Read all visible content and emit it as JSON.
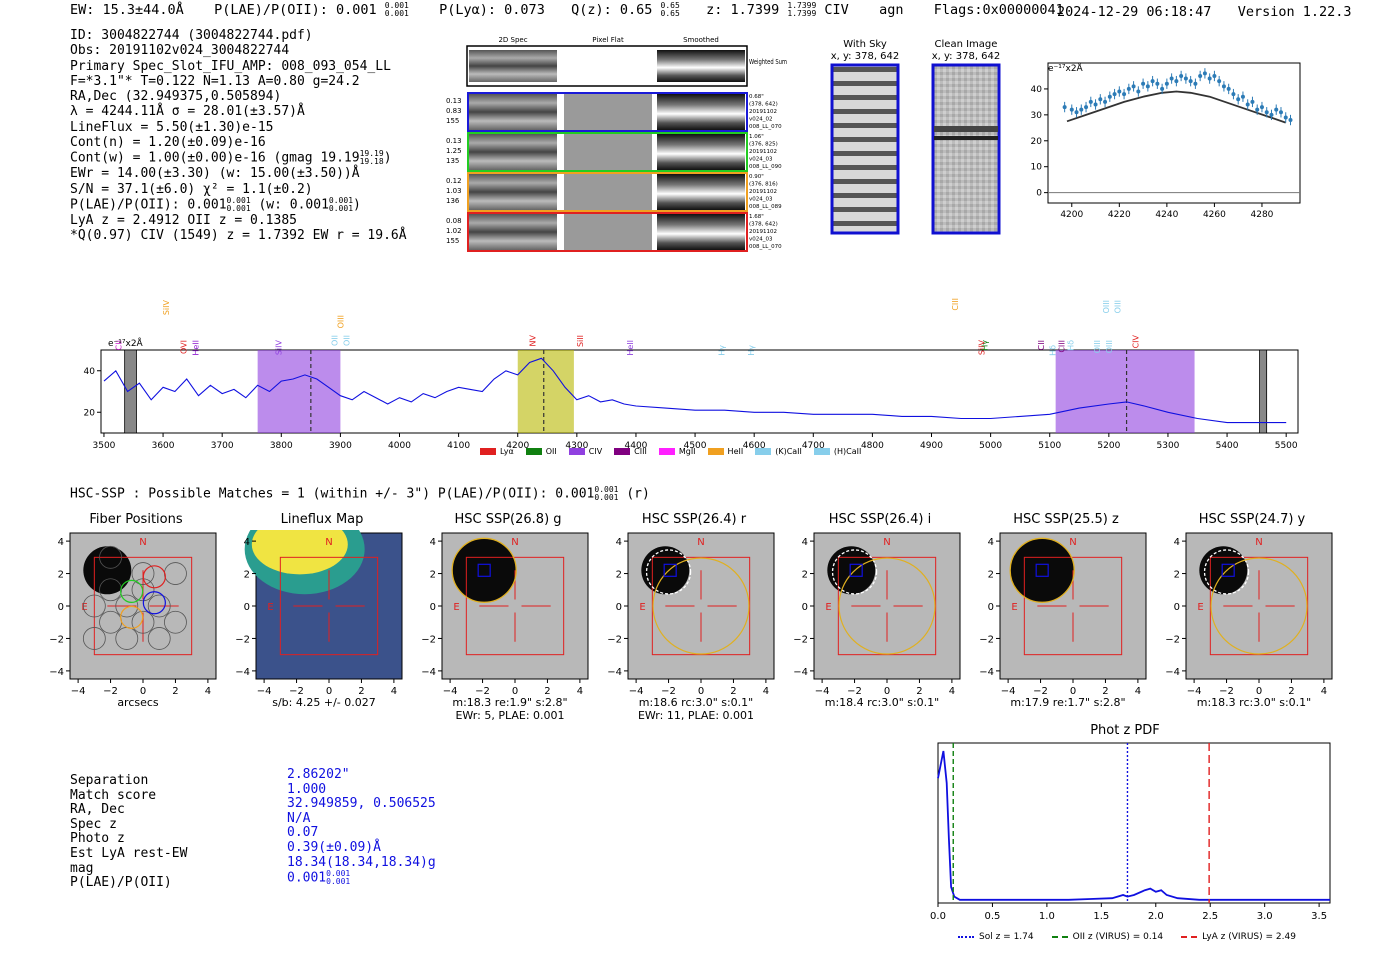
{
  "header": {
    "ew": "EW: 15.3±44.0Å",
    "plae": "P(LAE)/P(OII): 0.001",
    "plae_sup": "0.001",
    "plae_sub": "0.001",
    "plya": "P(Lyα): 0.073",
    "qz": "Q(z): 0.65",
    "qz_sup": "0.65",
    "qz_sub": "0.65",
    "z": "z: 1.7399",
    "z_sup": "1.7399",
    "z_sub": "1.7399",
    "line": "CIV",
    "cls": "agn",
    "flags": "Flags:0x00000041",
    "datetime": "2024-12-29 06:18:47",
    "version": "Version 1.22.3"
  },
  "info": [
    "ID: 3004822744 (3004822744.pdf)",
    "Obs: 20191102v024_3004822744",
    "Primary Spec_Slot_IFU_AMP: 008_093_054_LL",
    "F=*3.1\"*  T=0.122  N=1.13  A=0.80  g=24.2",
    "RA,Dec (32.949375,0.505894)",
    "λ = 4244.11Å  σ = 28.01(±3.57)Å",
    "LineFlux = 5.50(±1.30)e-15",
    "Cont(n) = 1.20(±0.09)e-16",
    "Cont(w) = 1.00(±0.00)e-16 (gmag 19.19",
    "EWr = 14.00(±3.30) (w: 15.00(±3.50))Å",
    "S/N = 37.1(±6.0)  χ² = 1.1(±0.2)",
    "P(LAE)/P(OII): 0.001",
    "LyA z = 2.4912  OII z = 0.1385",
    "*Q(0.97) CIV (1549) z = 1.7392  EW r = 19.6Å"
  ],
  "info_extras": {
    "gmag_sup": "19.19",
    "gmag_sub": "19.18",
    "plae_sup": "0.001",
    "plae_sub": "0.001",
    "plae_w": "(w: 0.001",
    "plae_w_sup": "0.001",
    "plae_w_sub": "0.001",
    "plae_w_close": ")"
  },
  "fiber_panel": {
    "col_titles": [
      "2D Spec",
      "Pixel Flat",
      "Smoothed"
    ],
    "weighted_sum": "Weighted Sum",
    "rows": [
      {
        "left": [
          "0.13",
          "0.83",
          "155"
        ],
        "right": [
          "0.68\"",
          "(378, 642)",
          "20191102",
          "v024_02",
          "008_LL_070"
        ],
        "color": "#1a1ad8"
      },
      {
        "left": [
          "0.13",
          "1.25",
          "135"
        ],
        "right": [
          "1.06\"",
          "(376, 825)",
          "20191102",
          "v024_03",
          "008_LL_090"
        ],
        "color": "#22cc22"
      },
      {
        "left": [
          "0.12",
          "1.03",
          "136"
        ],
        "right": [
          "0.90\"",
          "(376, 816)",
          "20191102",
          "v024_03",
          "008_LL_089"
        ],
        "color": "#f0a020"
      },
      {
        "left": [
          "0.08",
          "1.02",
          "155"
        ],
        "right": [
          "1.68\"",
          "(378, 642)",
          "20191102",
          "v024_03",
          "008_LL_070"
        ],
        "color": "#e02020"
      }
    ]
  },
  "sky_panels": {
    "with_sky": "With Sky",
    "with_sky_xy": "x, y: 378, 642",
    "clean": "Clean Image",
    "clean_xy": "x, y: 378, 642"
  },
  "zoom_chart": {
    "unit": "e⁻¹⁷x2Å",
    "x_ticks": [
      "4200",
      "4220",
      "4240",
      "4260",
      "4280"
    ],
    "y_ticks": [
      "0",
      "10",
      "20",
      "30",
      "40"
    ]
  },
  "spectrum": {
    "unit": "e⁻¹⁷x2Å",
    "x_ticks": [
      "3500",
      "3600",
      "3700",
      "3800",
      "3900",
      "4000",
      "4100",
      "4200",
      "4300",
      "4400",
      "4500",
      "4600",
      "4700",
      "4800",
      "4900",
      "5000",
      "5100",
      "5200",
      "5300",
      "5400",
      "5500"
    ],
    "y_ticks": [
      "20",
      "40"
    ],
    "line_labels": [
      {
        "text": "CII",
        "color": "#d020d0"
      },
      {
        "text": "SiIV",
        "color": "#f0a020"
      },
      {
        "text": "OVI",
        "color": "#e02020"
      },
      {
        "text": "HeII",
        "color": "#9020d0"
      },
      {
        "text": "SiIV",
        "color": "#9040e0"
      },
      {
        "text": "OII",
        "color": "#87ceeb"
      },
      {
        "text": "OIII",
        "color": "#f0a020"
      },
      {
        "text": "OII",
        "color": "#87ceeb"
      },
      {
        "text": "NV",
        "color": "#e02020"
      },
      {
        "text": "SiII",
        "color": "#e02020"
      },
      {
        "text": "HeII",
        "color": "#9040e0"
      },
      {
        "text": "Hγ",
        "color": "#87ceeb"
      },
      {
        "text": "Hγ",
        "color": "#87ceeb"
      },
      {
        "text": "SiIV",
        "color": "#e02020"
      },
      {
        "text": "CIII",
        "color": "#f0a020"
      },
      {
        "text": "Hγ",
        "color": "#108010"
      },
      {
        "text": "CII",
        "color": "#800080"
      },
      {
        "text": "Hδ",
        "color": "#87ceeb"
      },
      {
        "text": "CIII",
        "color": "#800080"
      },
      {
        "text": "Hδ",
        "color": "#87ceeb"
      },
      {
        "text": "OIII",
        "color": "#87ceeb"
      },
      {
        "text": "OIII",
        "color": "#87ceeb"
      },
      {
        "text": "OIII",
        "color": "#87ceeb"
      },
      {
        "text": "OIII",
        "color": "#87ceeb"
      },
      {
        "text": "CIV",
        "color": "#e02020"
      }
    ],
    "legend": [
      {
        "label": "Lyα",
        "color": "#e02020"
      },
      {
        "label": "OII",
        "color": "#108010"
      },
      {
        "label": "CIV",
        "color": "#9040e0"
      },
      {
        "label": "CIII",
        "color": "#800080"
      },
      {
        "label": "MgII",
        "color": "#ff20ff"
      },
      {
        "label": "HeII",
        "color": "#f0a020"
      },
      {
        "label": "(K)CaII",
        "color": "#87ceeb"
      },
      {
        "label": "(H)CaII",
        "color": "#87ceeb"
      }
    ]
  },
  "hsc_header": {
    "text": "HSC-SSP : Possible Matches = 1 (within +/- 3\")  P(LAE)/P(OII): 0.001",
    "sup": "0.001",
    "sub": "0.001",
    "tail": "(r)"
  },
  "cutouts": [
    {
      "title": "Fiber Positions",
      "caption1": "arcsecs",
      "caption2": ""
    },
    {
      "title": "Lineflux Map",
      "caption1": "s/b: 4.25 +/- 0.027",
      "caption2": ""
    },
    {
      "title": "HSC SSP(26.8) g",
      "caption1": "m:18.3  re:1.9\"  s:2.8\"",
      "caption2": "EWr: 5, PLAE: 0.001"
    },
    {
      "title": "HSC SSP(26.4) r",
      "caption1": "m:18.6 rc:3.0\"  s:0.1\"",
      "caption2": "EWr: 11, PLAE: 0.001"
    },
    {
      "title": "HSC SSP(26.4) i",
      "caption1": "m:18.4 rc:3.0\"  s:0.1\"",
      "caption2": ""
    },
    {
      "title": "HSC SSP(25.5) z",
      "caption1": "m:17.9  re:1.7\"  s:2.8\"",
      "caption2": ""
    },
    {
      "title": "HSC SSP(24.7) y",
      "caption1": "m:18.3 rc:3.0\"  s:0.1\"",
      "caption2": ""
    }
  ],
  "cutout_ticks": {
    "x": [
      "−4",
      "−2",
      "0",
      "2",
      "4"
    ],
    "y": [
      "4",
      "2",
      "0",
      "−2",
      "−4"
    ]
  },
  "compass": {
    "n": "N",
    "e": "E"
  },
  "match_table": {
    "labels": [
      "Separation",
      "Match score",
      "RA, Dec",
      "Spec z",
      "Photo z",
      "Est LyA rest-EW",
      "mag",
      "P(LAE)/P(OII)"
    ],
    "values": [
      "2.86202\"",
      "1.000",
      "32.949859, 0.506525",
      "N/A",
      "0.07",
      "0.39(±0.09)Å",
      "18.34(18.34,18.34)g",
      "0.001"
    ],
    "plae_sup": "0.001",
    "plae_sub": "0.001"
  },
  "photz": {
    "title": "Phot z PDF",
    "x_ticks": [
      "0.0",
      "0.5",
      "1.0",
      "1.5",
      "2.0",
      "2.5",
      "3.0",
      "3.5"
    ],
    "legend": [
      {
        "label": "Sol z = 1.74",
        "color": "#1010e0"
      },
      {
        "label": "OII z (VIRUS) = 0.14",
        "color": "#108010"
      },
      {
        "label": "LyA z (VIRUS) = 2.49",
        "color": "#e02020"
      }
    ]
  },
  "chart_data": [
    {
      "type": "scatter",
      "title": "",
      "xlabel": "",
      "ylabel": "e⁻¹⁷x2Å",
      "xlim": [
        4190,
        4296
      ],
      "ylim": [
        -4,
        50
      ],
      "series": [
        {
          "kind": "points",
          "x": [
            4197,
            4200,
            4202,
            4204,
            4206,
            4208,
            4210,
            4212,
            4214,
            4216,
            4218,
            4220,
            4222,
            4224,
            4226,
            4228,
            4230,
            4232,
            4234,
            4236,
            4238,
            4240,
            4242,
            4244,
            4246,
            4248,
            4250,
            4252,
            4254,
            4256,
            4258,
            4260,
            4262,
            4264,
            4266,
            4268,
            4270,
            4272,
            4274,
            4276,
            4278,
            4280,
            4282,
            4284,
            4286,
            4288,
            4290,
            4292
          ],
          "y": [
            33,
            32,
            31,
            32,
            33,
            35,
            34,
            36,
            35,
            37,
            38,
            39,
            38,
            40,
            41,
            39,
            42,
            41,
            43,
            42,
            40,
            42,
            44,
            43,
            45,
            44,
            43,
            42,
            45,
            46,
            44,
            45,
            43,
            41,
            40,
            38,
            36,
            37,
            34,
            35,
            32,
            33,
            31,
            30,
            32,
            31,
            29,
            28
          ],
          "err": [
            2,
            2,
            2,
            2,
            2,
            2,
            2,
            2,
            2,
            2,
            2,
            2,
            2,
            2,
            2,
            2,
            2,
            2,
            2,
            2,
            2,
            2,
            2,
            2,
            2,
            2,
            2,
            2,
            2,
            2,
            2,
            2,
            2,
            2,
            2,
            2,
            2,
            2,
            2,
            2,
            2,
            2,
            2,
            2,
            2,
            2,
            2,
            2
          ]
        },
        {
          "kind": "model",
          "x": [
            4198,
            4206,
            4214,
            4222,
            4230,
            4238,
            4244,
            4250,
            4258,
            4266,
            4274,
            4282,
            4290
          ],
          "y": [
            27.5,
            30,
            32.5,
            35,
            37,
            38.5,
            39,
            38.5,
            37,
            34.5,
            32,
            29.5,
            27
          ]
        }
      ]
    },
    {
      "type": "line",
      "title": "",
      "xlabel": "",
      "ylabel": "e⁻¹⁷x2Å",
      "xlim": [
        3495,
        5520
      ],
      "ylim": [
        10,
        50
      ],
      "x": [
        3500,
        3520,
        3540,
        3560,
        3580,
        3600,
        3620,
        3640,
        3660,
        3680,
        3700,
        3720,
        3740,
        3760,
        3780,
        3800,
        3820,
        3840,
        3860,
        3880,
        3900,
        3920,
        3940,
        3960,
        3980,
        4000,
        4020,
        4040,
        4060,
        4080,
        4100,
        4120,
        4140,
        4160,
        4180,
        4200,
        4220,
        4240,
        4260,
        4280,
        4300,
        4320,
        4340,
        4360,
        4380,
        4400,
        4450,
        4500,
        4550,
        4600,
        4650,
        4700,
        4750,
        4800,
        4850,
        4900,
        4950,
        5000,
        5050,
        5100,
        5150,
        5200,
        5230,
        5260,
        5300,
        5350,
        5400,
        5450,
        5500
      ],
      "values": [
        35,
        40,
        30,
        34,
        26,
        32,
        30,
        36,
        28,
        33,
        29,
        31,
        27,
        33,
        30,
        35,
        36,
        38,
        36,
        32,
        28,
        26,
        30,
        27,
        24,
        27,
        25,
        29,
        27,
        30,
        32,
        31,
        30,
        36,
        40,
        38,
        44,
        46,
        40,
        32,
        26,
        28,
        25,
        26,
        24,
        23,
        22,
        21,
        21,
        20,
        20,
        19,
        19,
        19,
        18,
        18,
        17,
        17,
        18,
        19,
        22,
        24,
        25,
        23,
        20,
        17,
        15,
        15,
        15
      ],
      "highlight_bands": [
        {
          "from": 3760,
          "to": 3900,
          "color": "#9040e0"
        },
        {
          "from": 4200,
          "to": 4295,
          "color": "#b8b800"
        },
        {
          "from": 5110,
          "to": 5345,
          "color": "#9040e0"
        }
      ],
      "masked_bands": [
        {
          "from": 3535,
          "to": 3555
        },
        {
          "from": 5455,
          "to": 5467
        }
      ],
      "markers": [
        3850,
        4244,
        5230
      ]
    },
    {
      "type": "line",
      "title": "Phot z PDF",
      "xlabel": "",
      "ylabel": "",
      "xlim": [
        0,
        3.6
      ],
      "ylim": [
        0,
        1
      ],
      "x": [
        0,
        0.05,
        0.08,
        0.1,
        0.12,
        0.15,
        0.2,
        0.4,
        0.8,
        1.2,
        1.4,
        1.6,
        1.7,
        1.74,
        1.8,
        1.9,
        1.95,
        2.0,
        2.05,
        2.1,
        2.2,
        2.4,
        2.8,
        3.2,
        3.6
      ],
      "values": [
        0.78,
        0.95,
        0.75,
        0.4,
        0.1,
        0.04,
        0.02,
        0.02,
        0.02,
        0.02,
        0.025,
        0.03,
        0.05,
        0.04,
        0.05,
        0.08,
        0.09,
        0.07,
        0.08,
        0.05,
        0.03,
        0.02,
        0.02,
        0.02,
        0.02
      ],
      "vlines": [
        {
          "x": 1.74,
          "label": "Sol z = 1.74"
        },
        {
          "x": 0.14,
          "label": "OII z (VIRUS) = 0.14"
        },
        {
          "x": 2.49,
          "label": "LyA z (VIRUS) = 2.49"
        }
      ]
    }
  ]
}
